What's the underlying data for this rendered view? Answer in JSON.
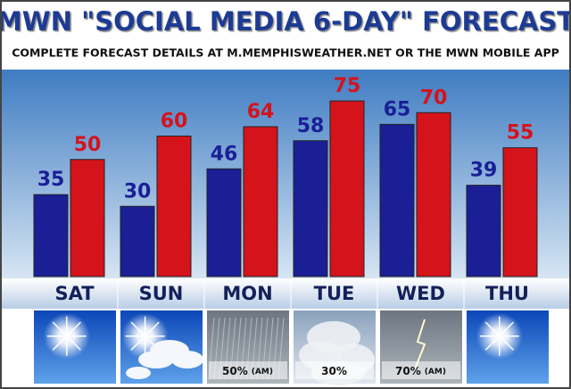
{
  "chart_data": {
    "type": "bar",
    "title": "MWN \"SOCIAL MEDIA 6-DAY\" FORECAST",
    "subtitle": "COMPLETE FORECAST DETAILS AT M.MEMPHISWEATHER.NET OR THE MWN MOBILE APP",
    "categories": [
      "SAT",
      "SUN",
      "MON",
      "TUE",
      "WED",
      "THU"
    ],
    "series": [
      {
        "color": "#1a1f96",
        "values": [
          35,
          30,
          46,
          58,
          65,
          39
        ]
      },
      {
        "color": "#d4131b",
        "values": [
          50,
          60,
          64,
          75,
          70,
          55
        ]
      }
    ],
    "precip": [
      null,
      null,
      "50%",
      "30%",
      "70%",
      null
    ],
    "precip_note": [
      null,
      null,
      "(AM)",
      null,
      "(AM)",
      null
    ],
    "ylim": [
      0,
      80
    ]
  }
}
